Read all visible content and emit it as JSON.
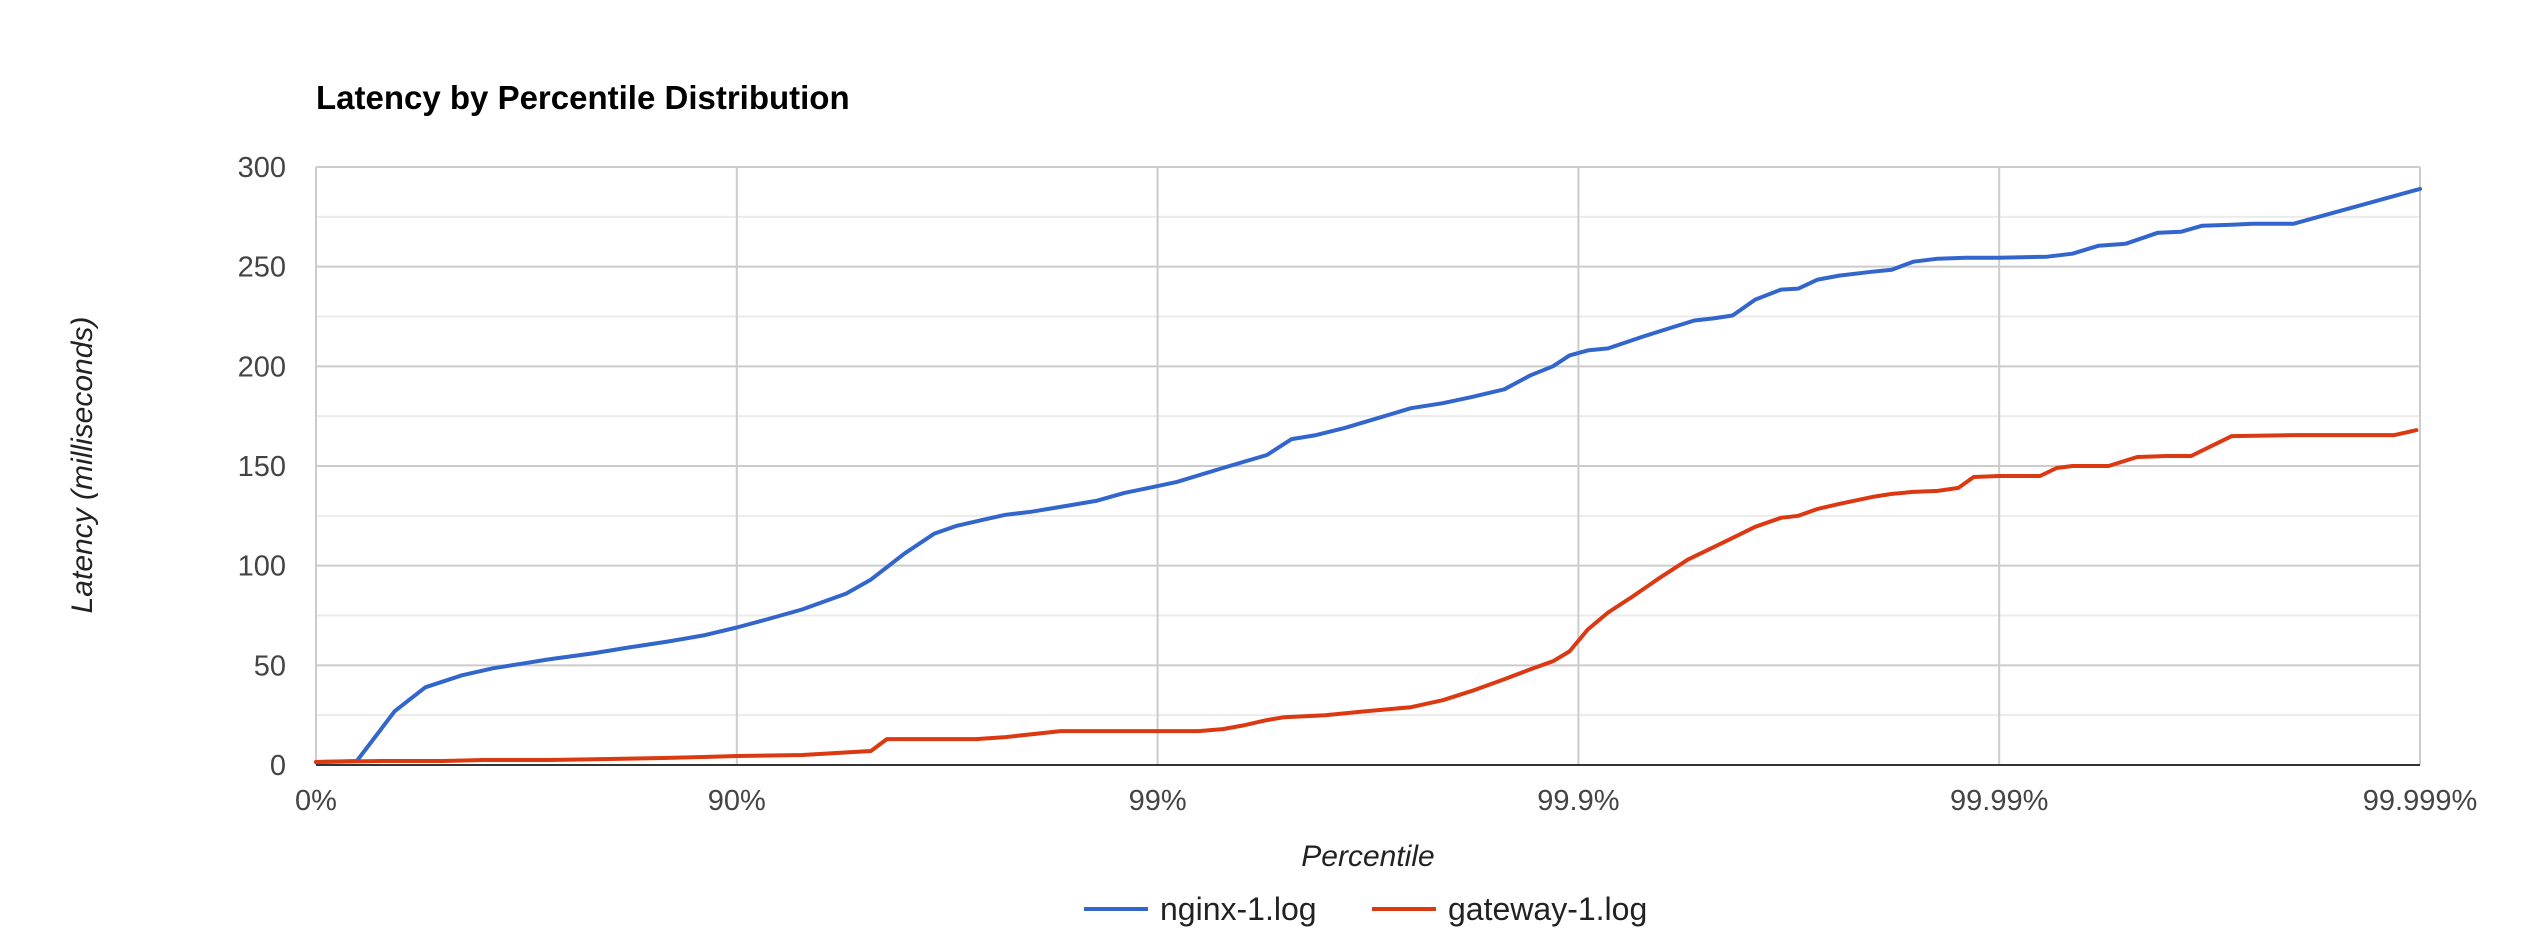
{
  "chart_data": {
    "type": "line",
    "title": "Latency by Percentile Distribution",
    "xlabel": "Percentile",
    "ylabel": "Latency (milliseconds)",
    "x_scale": "percentile-log",
    "x_tick_labels": [
      "0%",
      "90%",
      "99%",
      "99.9%",
      "99.99%",
      "99.999%"
    ],
    "xlim": [
      "0%",
      "99.999%"
    ],
    "ylim": [
      0,
      300
    ],
    "y_ticks": [
      0,
      50,
      100,
      150,
      200,
      250,
      300
    ],
    "grid": true,
    "legend_position": "bottom",
    "series": [
      {
        "name": "nginx-1.log",
        "color": "#3366cc",
        "points": [
          [
            "0%",
            1.5
          ],
          [
            "20%",
            2
          ],
          [
            "35%",
            27
          ],
          [
            "45%",
            39
          ],
          [
            "55%",
            45
          ],
          [
            "62%",
            48.5
          ],
          [
            "68%",
            51
          ],
          [
            "72%",
            53
          ],
          [
            "78%",
            56
          ],
          [
            "82%",
            59
          ],
          [
            "85.5%",
            62
          ],
          [
            "88%",
            65
          ],
          [
            "90%",
            69
          ],
          [
            "91.5%",
            73
          ],
          [
            "93%",
            78
          ],
          [
            "94.5%",
            86
          ],
          [
            "95.2%",
            93
          ],
          [
            "96%",
            106
          ],
          [
            "96.6%",
            116
          ],
          [
            "97%",
            120
          ],
          [
            "97.4%",
            123
          ],
          [
            "97.7%",
            125.5
          ],
          [
            "98.0%",
            127
          ],
          [
            "98.3%",
            129.5
          ],
          [
            "98.6%",
            132.5
          ],
          [
            "98.8%",
            136.5
          ],
          [
            "98.95%",
            139
          ],
          [
            "99.1%",
            142
          ],
          [
            "99.3%",
            149
          ],
          [
            "99.45%",
            155.5
          ],
          [
            "99.52%",
            163.5
          ],
          [
            "99.58%",
            165.5
          ],
          [
            "99.64%",
            169
          ],
          [
            "99.7%",
            174
          ],
          [
            "99.75%",
            179
          ],
          [
            "99.79%",
            181.5
          ],
          [
            "99.82%",
            184.5
          ],
          [
            "99.85%",
            188.5
          ],
          [
            "99.87%",
            195.5
          ],
          [
            "99.885%",
            200
          ],
          [
            "99.895%",
            205.5
          ],
          [
            "99.905%",
            208
          ],
          [
            "99.915%",
            209
          ],
          [
            "99.93%",
            215
          ],
          [
            "99.94%",
            219.5
          ],
          [
            "99.947%",
            223
          ],
          [
            "99.952%",
            224
          ],
          [
            "99.957%",
            225.5
          ],
          [
            "99.962%",
            233.5
          ],
          [
            "99.967%",
            238.5
          ],
          [
            "99.97%",
            239
          ],
          [
            "99.973%",
            243.5
          ],
          [
            "99.976%",
            245.5
          ],
          [
            "99.98%",
            247.5
          ],
          [
            "99.982%",
            248.5
          ],
          [
            "99.984%",
            252.5
          ],
          [
            "99.986%",
            254
          ],
          [
            "99.988%",
            254.5
          ],
          [
            "99.99%",
            254.5
          ],
          [
            "99.9923%",
            255
          ],
          [
            "99.9933%",
            256.5
          ],
          [
            "99.9942%",
            260.5
          ],
          [
            "99.995%",
            261.5
          ],
          [
            "99.9958%",
            267
          ],
          [
            "99.9963%",
            267.5
          ],
          [
            "99.9967%",
            270.5
          ],
          [
            "99.9972%",
            271
          ],
          [
            "99.9975%",
            271.5
          ],
          [
            "99.99785%",
            271.5
          ],
          [
            "99.998%",
            271.5
          ],
          [
            "99.999%",
            289
          ]
        ]
      },
      {
        "name": "gateway-1.log",
        "color": "#dc3912",
        "points": [
          [
            "0%",
            1.5
          ],
          [
            "30%",
            2
          ],
          [
            "50%",
            2
          ],
          [
            "60%",
            2.5
          ],
          [
            "72%",
            2.5
          ],
          [
            "80%",
            3
          ],
          [
            "85%",
            3.5
          ],
          [
            "88%",
            4
          ],
          [
            "90%",
            4.5
          ],
          [
            "93%",
            5
          ],
          [
            "95.2%",
            7
          ],
          [
            "95.6%",
            13
          ],
          [
            "97.3%",
            13
          ],
          [
            "97.7%",
            14
          ],
          [
            "98.3%",
            17
          ],
          [
            "99.2%",
            17
          ],
          [
            "99.3%",
            18
          ],
          [
            "99.38%",
            20
          ],
          [
            "99.45%",
            22.5
          ],
          [
            "99.5%",
            24
          ],
          [
            "99.6%",
            25
          ],
          [
            "99.68%",
            27
          ],
          [
            "99.75%",
            29
          ],
          [
            "99.79%",
            32.5
          ],
          [
            "99.82%",
            37
          ],
          [
            "99.85%",
            43
          ],
          [
            "99.87%",
            48
          ],
          [
            "99.885%",
            52
          ],
          [
            "99.895%",
            57
          ],
          [
            "99.905%",
            68
          ],
          [
            "99.915%",
            76.5
          ],
          [
            "99.925%",
            84
          ],
          [
            "99.935%",
            93
          ],
          [
            "99.945%",
            103
          ],
          [
            "99.952%",
            109
          ],
          [
            "99.958%",
            115
          ],
          [
            "99.962%",
            119.5
          ],
          [
            "99.967%",
            124
          ],
          [
            "99.97%",
            125
          ],
          [
            "99.973%",
            128.5
          ],
          [
            "99.976%",
            131
          ],
          [
            "99.98%",
            134.5
          ],
          [
            "99.982%",
            136
          ],
          [
            "99.984%",
            137
          ],
          [
            "99.986%",
            137.5
          ],
          [
            "99.9875%",
            139
          ],
          [
            "99.9885%",
            144.5
          ],
          [
            "99.99%",
            145
          ],
          [
            "99.992%",
            145
          ],
          [
            "99.9927%",
            149
          ],
          [
            "99.9933%",
            150
          ],
          [
            "99.9945%",
            150
          ],
          [
            "99.9953%",
            154.5
          ],
          [
            "99.996%",
            155
          ],
          [
            "99.9965%",
            155
          ],
          [
            "99.9972%",
            165
          ],
          [
            "99.998%",
            165.5
          ],
          [
            "99.9985%",
            165.5
          ],
          [
            "99.99885%",
            165.5
          ],
          [
            "99.99898%",
            168
          ]
        ]
      }
    ]
  }
}
